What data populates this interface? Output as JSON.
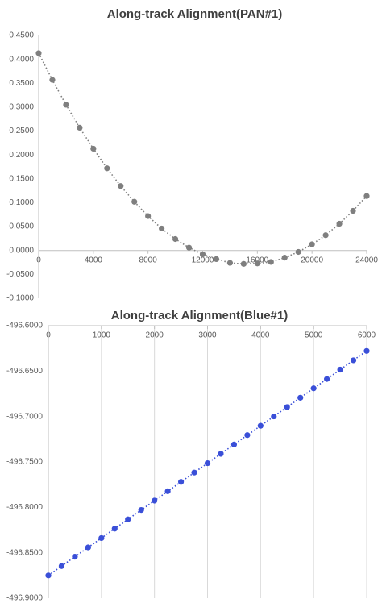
{
  "chart_data": [
    {
      "type": "line",
      "title": "Along-track Alignment(PAN#1)",
      "x": [
        0,
        1000,
        2000,
        3000,
        4000,
        5000,
        6000,
        7000,
        8000,
        9000,
        10000,
        11000,
        12000,
        13000,
        14000,
        15000,
        16000,
        17000,
        18000,
        19000,
        20000,
        21000,
        22000,
        23000,
        24000
      ],
      "series": [
        {
          "color": "#7f7f7f",
          "values": [
            0.413,
            0.357,
            0.305,
            0.257,
            0.213,
            0.172,
            0.135,
            0.102,
            0.072,
            0.046,
            0.024,
            0.006,
            -0.008,
            -0.018,
            -0.026,
            -0.028,
            -0.027,
            -0.024,
            -0.015,
            -0.003,
            0.013,
            0.032,
            0.056,
            0.083,
            0.114
          ]
        }
      ],
      "xlim": [
        0,
        24000
      ],
      "xticks": [
        0,
        4000,
        8000,
        12000,
        16000,
        20000,
        24000
      ],
      "ylim": [
        -0.1,
        0.45
      ],
      "yticks": [
        {
          "value": -0.1,
          "label": "-0.1000"
        },
        {
          "value": -0.05,
          "label": "-0.0500"
        },
        {
          "value": 0,
          "label": "0.0000"
        },
        {
          "value": 0.05,
          "label": "0.0500"
        },
        {
          "value": 0.1,
          "label": "0.1000"
        },
        {
          "value": 0.15,
          "label": "0.1500"
        },
        {
          "value": 0.2,
          "label": "0.2000"
        },
        {
          "value": 0.25,
          "label": "0.2500"
        },
        {
          "value": 0.3,
          "label": "0.3000"
        },
        {
          "value": 0.35,
          "label": "0.3500"
        },
        {
          "value": 0.4,
          "label": "0.4000"
        },
        {
          "value": 0.45,
          "label": "0.4500"
        }
      ],
      "x_axis_position": "zero",
      "grid": false
    },
    {
      "type": "line",
      "title": "Along-track Alignment(Blue#1)",
      "x": [
        0,
        250,
        500,
        750,
        1000,
        1250,
        1500,
        1750,
        2000,
        2250,
        2500,
        2750,
        3000,
        3250,
        3500,
        3750,
        4000,
        4250,
        4500,
        4750,
        5000,
        5250,
        5500,
        5750,
        6000
      ],
      "series": [
        {
          "color": "#3a4fd8",
          "values": [
            -496.875,
            -496.8647,
            -496.8544,
            -496.8441,
            -496.8338,
            -496.8235,
            -496.8132,
            -496.8029,
            -496.7926,
            -496.7823,
            -496.772,
            -496.7617,
            -496.7514,
            -496.7411,
            -496.7308,
            -496.7205,
            -496.7102,
            -496.6999,
            -496.6896,
            -496.6793,
            -496.669,
            -496.6587,
            -496.6484,
            -496.6381,
            -496.6278
          ]
        }
      ],
      "xlim": [
        0,
        6000
      ],
      "xticks": [
        0,
        1000,
        2000,
        3000,
        4000,
        5000,
        6000
      ],
      "ylim": [
        -496.9,
        -496.6
      ],
      "yticks": [
        {
          "value": -496.9,
          "label": "-496.9000"
        },
        {
          "value": -496.85,
          "label": "-496.8500"
        },
        {
          "value": -496.8,
          "label": "-496.8000"
        },
        {
          "value": -496.75,
          "label": "-496.7500"
        },
        {
          "value": -496.7,
          "label": "-496.7000"
        },
        {
          "value": -496.65,
          "label": "-496.6500"
        },
        {
          "value": -496.6,
          "label": "-496.6000"
        }
      ],
      "x_axis_position": "top",
      "grid": true
    }
  ]
}
